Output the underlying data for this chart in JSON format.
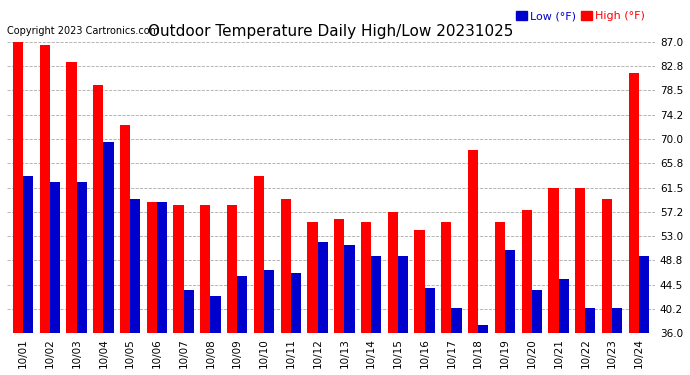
{
  "title": "Outdoor Temperature Daily High/Low 20231025",
  "copyright": "Copyright 2023 Cartronics.com",
  "legend_low": "Low",
  "legend_low2": " (",
  "legend_low3": "°F)",
  "legend_high": "High",
  "legend_high2": " (",
  "legend_high3": "°F)",
  "dates": [
    "10/01",
    "10/02",
    "10/03",
    "10/04",
    "10/05",
    "10/06",
    "10/07",
    "10/08",
    "10/09",
    "10/10",
    "10/11",
    "10/12",
    "10/13",
    "10/14",
    "10/15",
    "10/16",
    "10/17",
    "10/18",
    "10/19",
    "10/20",
    "10/21",
    "10/22",
    "10/23",
    "10/24"
  ],
  "high": [
    87.0,
    86.5,
    83.5,
    79.5,
    72.5,
    59.0,
    58.5,
    58.5,
    58.5,
    63.5,
    59.5,
    55.5,
    56.0,
    55.5,
    57.2,
    54.0,
    55.5,
    68.0,
    55.5,
    57.5,
    61.5,
    61.5,
    59.5,
    81.5
  ],
  "low": [
    63.5,
    62.5,
    62.5,
    69.5,
    59.5,
    59.0,
    43.5,
    42.5,
    46.0,
    47.0,
    46.5,
    52.0,
    51.5,
    49.5,
    49.5,
    44.0,
    40.5,
    37.5,
    50.5,
    43.5,
    45.5,
    40.5,
    40.5,
    49.5
  ],
  "ylim_min": 36.0,
  "ylim_max": 87.0,
  "yticks": [
    36.0,
    40.2,
    44.5,
    48.8,
    53.0,
    57.2,
    61.5,
    65.8,
    70.0,
    74.2,
    78.5,
    82.8,
    87.0
  ],
  "bar_width": 0.38,
  "high_color": "#ff0000",
  "low_color": "#0000cc",
  "bg_color": "#ffffff",
  "grid_color": "#aaaaaa",
  "title_fontsize": 11,
  "copyright_fontsize": 7,
  "tick_fontsize": 7.5,
  "legend_fontsize": 8
}
